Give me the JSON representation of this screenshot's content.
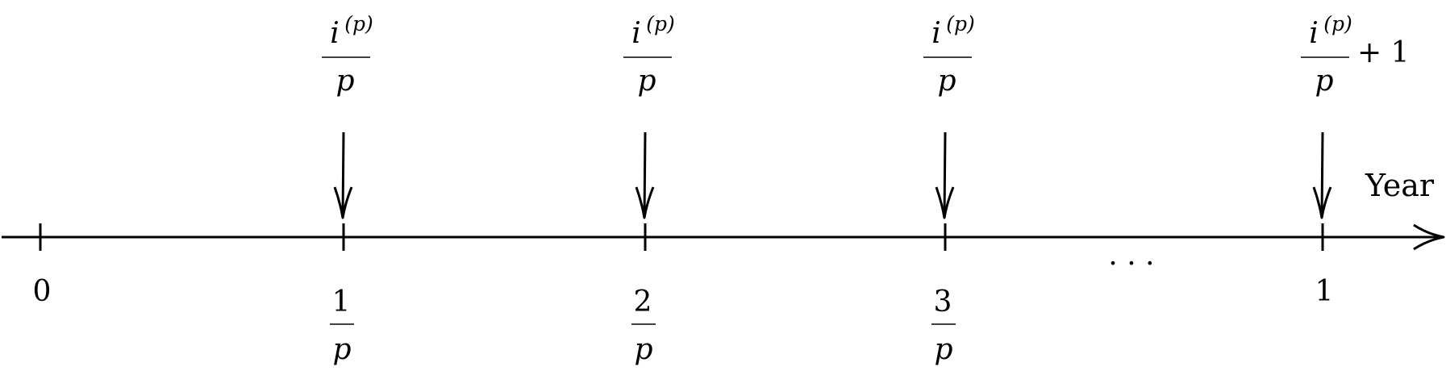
{
  "diagram": {
    "axis_label": "Year",
    "ellipsis": "· · ·",
    "plus_one": "+ 1",
    "payment": {
      "numerator_base": "i",
      "superscript": "(p)",
      "denominator": "p"
    },
    "ticks": [
      {
        "kind": "number",
        "label": "0",
        "payment": false
      },
      {
        "kind": "fraction",
        "numerator": "1",
        "denominator": "p",
        "payment": true
      },
      {
        "kind": "fraction",
        "numerator": "2",
        "denominator": "p",
        "payment": true
      },
      {
        "kind": "fraction",
        "numerator": "3",
        "denominator": "p",
        "payment": true
      },
      {
        "kind": "number",
        "label": "1",
        "payment": true,
        "final": true
      }
    ]
  }
}
